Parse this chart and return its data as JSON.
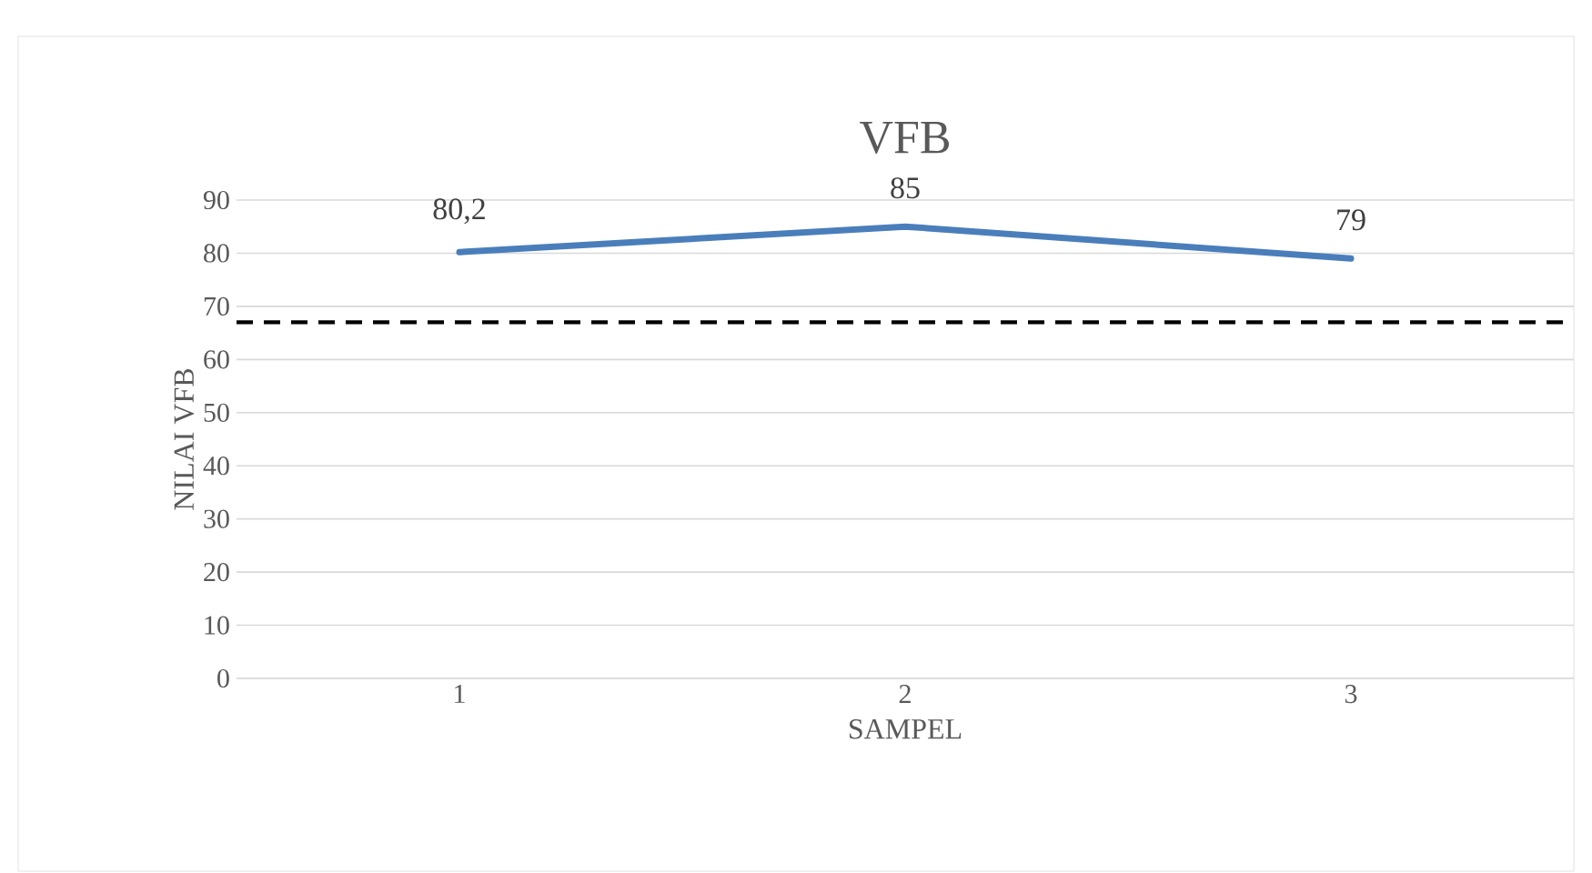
{
  "chart_data": {
    "type": "line",
    "title": "VFB",
    "xlabel": "SAMPEL",
    "ylabel": "NILAI VFB",
    "categories": [
      "1",
      "2",
      "3"
    ],
    "series": [
      {
        "color": "#4a7ebb",
        "values": [
          80.2,
          85,
          79
        ],
        "value_labels": [
          "80,2",
          "85",
          "79"
        ]
      }
    ],
    "ylim": [
      0,
      90
    ],
    "yticks": [
      0,
      10,
      20,
      30,
      40,
      50,
      60,
      70,
      80,
      90
    ],
    "grid": "y",
    "ref_lines": [
      {
        "axis": "y",
        "value": 67,
        "color": "#000000",
        "line_style": "dashed"
      }
    ]
  }
}
